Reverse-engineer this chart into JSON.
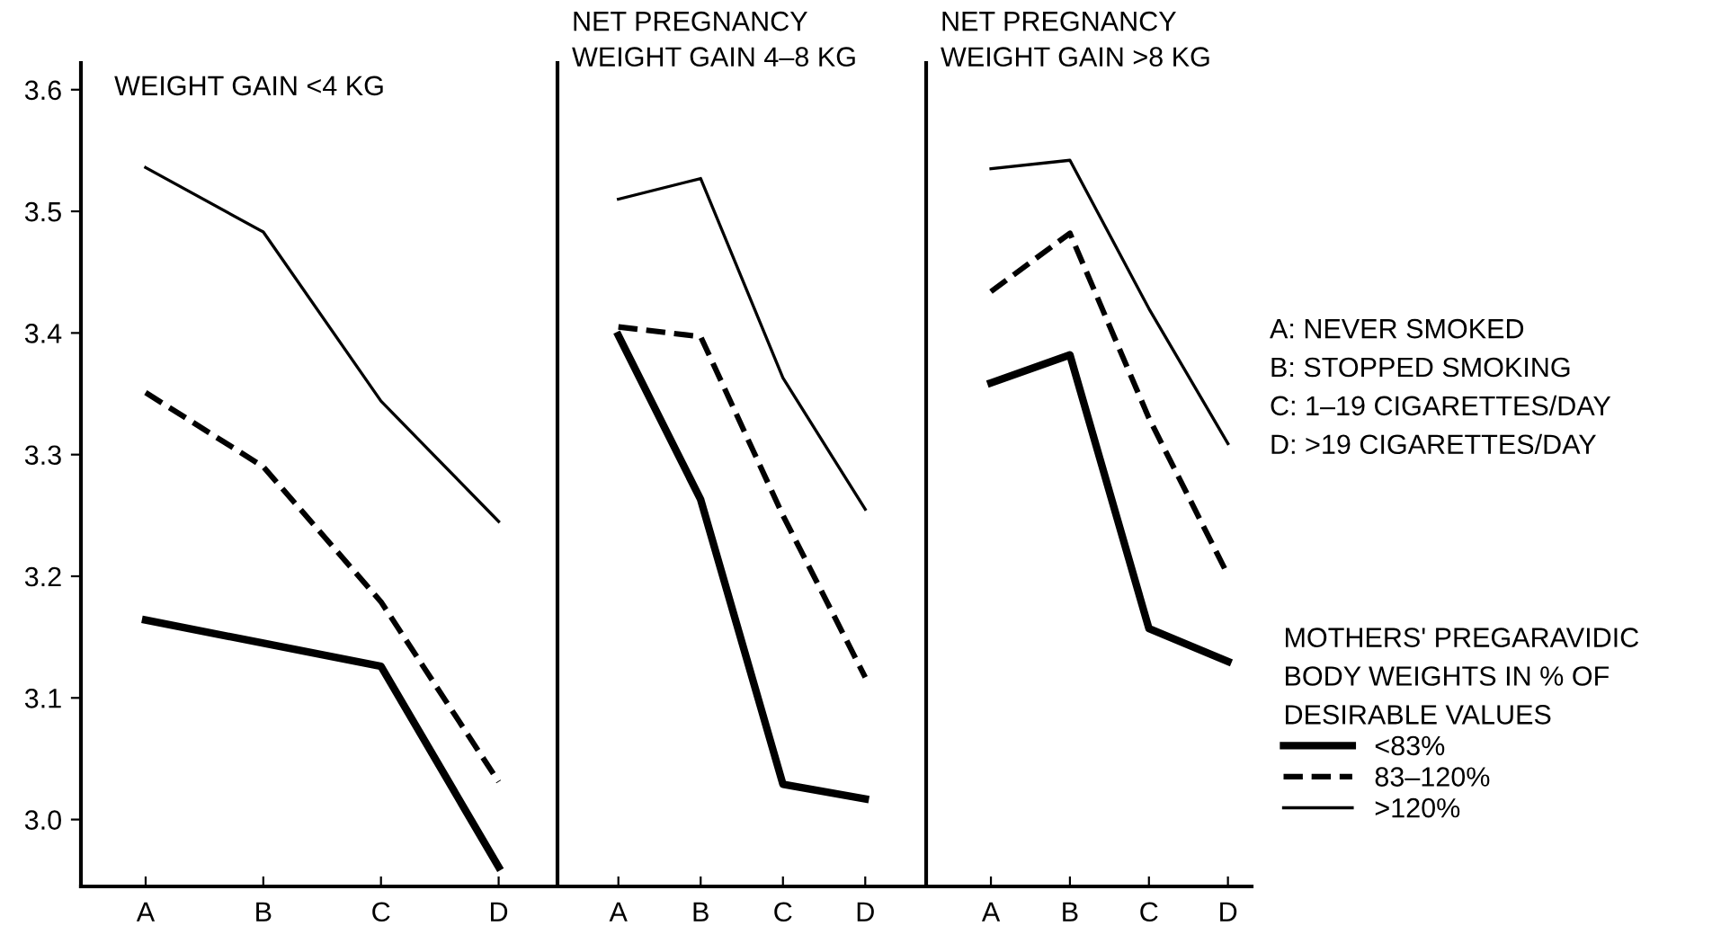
{
  "chart_data": [
    {
      "type": "line",
      "title": "WEIGHT GAIN <4 KG",
      "categories": [
        "A",
        "B",
        "C",
        "D"
      ],
      "ylim": [
        2.945,
        3.622
      ],
      "yticks": [
        {
          "value": 3,
          "label": "3.0"
        },
        3.1,
        3.2,
        3.3,
        3.4,
        3.5,
        3.6
      ],
      "grid": false,
      "legend": false,
      "series": [
        {
          "color": "#000000",
          "line_style": "solid",
          "values": [
            3.164,
            3.145,
            3.126,
            2.961
          ]
        },
        {
          "color": "#000000",
          "line_style": "dashed",
          "values": [
            3.351,
            3.29,
            3.179,
            3.031
          ]
        },
        {
          "color": "#000000",
          "line_style": "solid",
          "values": [
            3.536,
            3.483,
            3.344,
            3.245
          ]
        }
      ]
    },
    {
      "type": "line",
      "title": "NET PREGNANCY\nWEIGHT GAIN 4–8 KG",
      "categories": [
        "A",
        "B",
        "C",
        "D"
      ],
      "ylim": [
        2.945,
        3.622
      ],
      "tick_labels": "x",
      "grid": false,
      "legend": false,
      "series": [
        {
          "color": "#000000",
          "line_style": "solid",
          "values": [
            3.398,
            3.263,
            3.029,
            3.017
          ]
        },
        {
          "color": "#000000",
          "line_style": "dashed",
          "values": [
            3.405,
            3.397,
            3.25,
            3.117
          ]
        },
        {
          "color": "#000000",
          "line_style": "solid",
          "values": [
            3.51,
            3.527,
            3.363,
            3.255
          ]
        }
      ]
    },
    {
      "type": "line",
      "title": "NET PREGNANCY\nWEIGHT GAIN >8 KG",
      "categories": [
        "A",
        "B",
        "C",
        "D"
      ],
      "ylim": [
        2.945,
        3.622
      ],
      "tick_labels": "x",
      "grid": false,
      "legend": "right",
      "legend_title": "MOTHERS' PREGARAVIDIC\nBODY WEIGHTS IN % OF\nDESIRABLE VALUES",
      "annotations": [
        "A: NEVER SMOKED\nB: STOPPED SMOKING\nC: 1–19 CIGARETTES/DAY\nD: >19 CIGARETTES/DAY"
      ],
      "series": [
        {
          "name": "<83%",
          "color": "#000000",
          "line_style": "solid",
          "values": [
            3.359,
            3.382,
            3.157,
            3.13
          ]
        },
        {
          "name": "83–120%",
          "color": "#000000",
          "line_style": "dashed",
          "values": [
            3.434,
            3.482,
            3.33,
            3.201
          ]
        },
        {
          "name": ">120%",
          "color": "#000000",
          "line_style": "solid",
          "values": [
            3.535,
            3.542,
            3.42,
            3.309
          ]
        }
      ]
    }
  ]
}
